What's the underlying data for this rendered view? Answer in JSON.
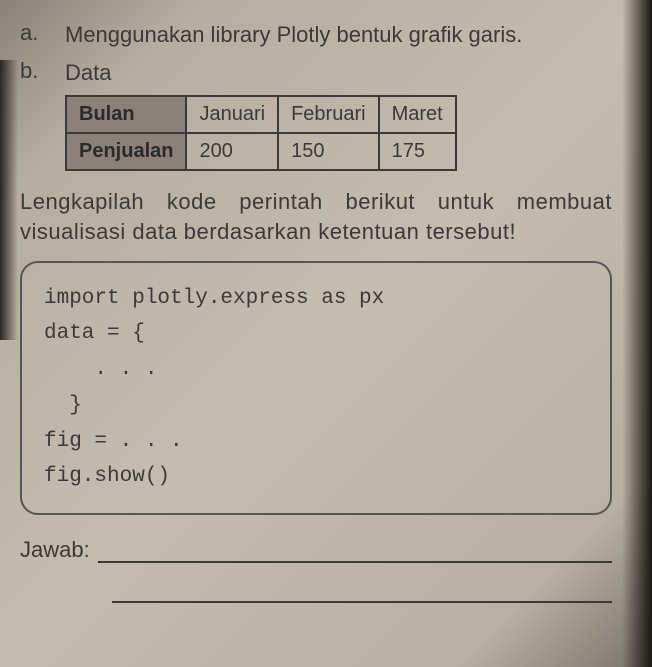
{
  "items": {
    "a": {
      "marker": "a.",
      "text": "Menggunakan library Plotly bentuk grafik garis."
    },
    "b": {
      "marker": "b.",
      "text": "Data"
    }
  },
  "table": {
    "row1": {
      "h": "Bulan",
      "c1": "Januari",
      "c2": "Februari",
      "c3": "Maret"
    },
    "row2": {
      "h": "Penjualan",
      "c1": "200",
      "c2": "150",
      "c3": "175"
    }
  },
  "instruction": "Lengkapilah kode perintah berikut untuk membuat visualisasi data berdasarkan ke­tentuan tersebut!",
  "code": {
    "l1": "import plotly.express as px",
    "l2": "data = {",
    "l3": "    . . .",
    "l4": "  }",
    "l5": "fig = . . .",
    "l6": "fig.show()"
  },
  "answer_label": "Jawab:"
}
